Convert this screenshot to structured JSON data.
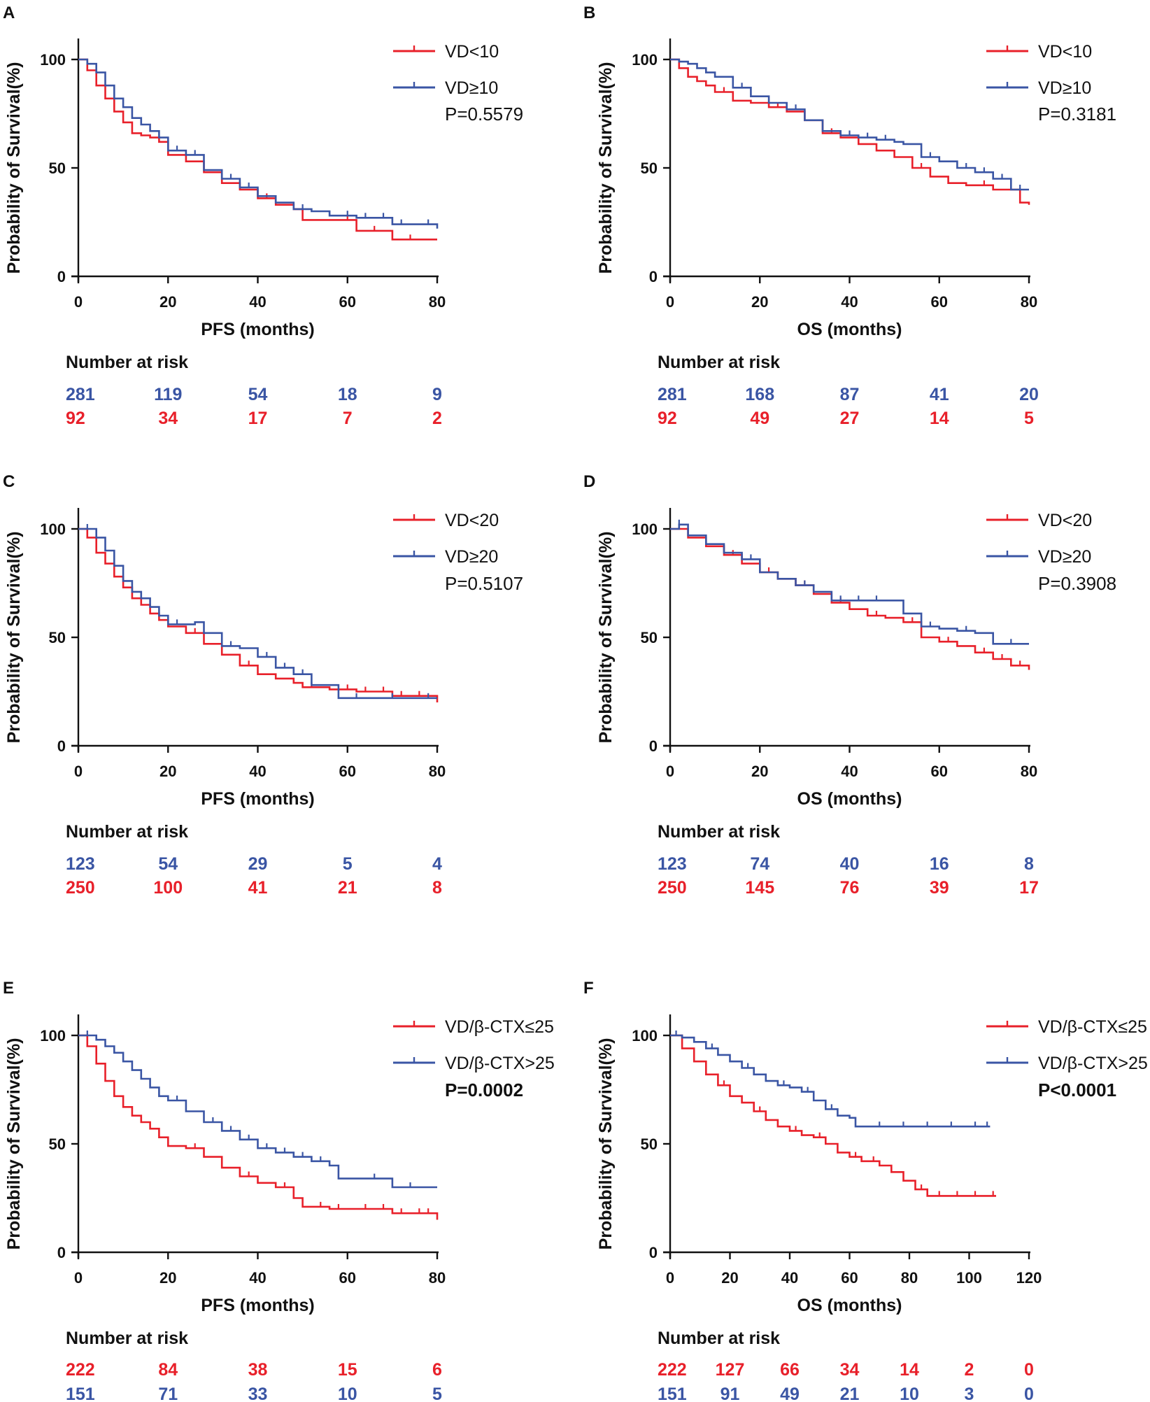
{
  "colors": {
    "red": "#e8202a",
    "blue": "#3a55a4",
    "axis": "#111111"
  },
  "chart_data": [
    {
      "panel": "A",
      "type": "line",
      "xlabel": "PFS (months)",
      "ylabel": "Probability of Survival(%)",
      "xlim": [
        0,
        80
      ],
      "ylim": [
        0,
        100
      ],
      "xticks": [
        "0",
        "20",
        "40",
        "60",
        "80"
      ],
      "yticks": [
        "0",
        "50",
        "100"
      ],
      "p_value": "P=0.5579",
      "p_bold": false,
      "risk_title": "Number at risk",
      "series": [
        {
          "name": "VD<10",
          "color": "red",
          "x": [
            0,
            2,
            4,
            6,
            8,
            10,
            12,
            14,
            16,
            18,
            20,
            24,
            28,
            32,
            36,
            40,
            44,
            48,
            50,
            56,
            62,
            70,
            80
          ],
          "y": [
            100,
            95,
            88,
            82,
            76,
            71,
            66,
            65,
            64,
            62,
            56,
            53,
            48,
            43,
            40,
            36,
            33,
            31,
            26,
            26,
            21,
            17,
            17
          ],
          "censored_x": [
            36,
            42,
            60,
            66,
            74
          ],
          "risk": [
            "92",
            "34",
            "17",
            "7",
            "2"
          ]
        },
        {
          "name": "VD≥10",
          "color": "blue",
          "x": [
            0,
            2,
            4,
            6,
            8,
            10,
            12,
            14,
            16,
            18,
            20,
            24,
            28,
            32,
            36,
            40,
            44,
            48,
            52,
            56,
            62,
            70,
            80
          ],
          "y": [
            100,
            98,
            94,
            88,
            82,
            78,
            73,
            70,
            67,
            64,
            58,
            56,
            49,
            45,
            41,
            37,
            34,
            31,
            30,
            28,
            27,
            24,
            22
          ],
          "censored_x": [
            22,
            26,
            34,
            38,
            44,
            50,
            56,
            60,
            64,
            68,
            72,
            78
          ],
          "risk": [
            "281",
            "119",
            "54",
            "18",
            "9"
          ]
        }
      ]
    },
    {
      "panel": "B",
      "type": "line",
      "xlabel": "OS (months)",
      "ylabel": "Probability of Survival(%)",
      "xlim": [
        0,
        80
      ],
      "ylim": [
        0,
        100
      ],
      "xticks": [
        "0",
        "20",
        "40",
        "60",
        "80"
      ],
      "yticks": [
        "0",
        "50",
        "100"
      ],
      "p_value": "P=0.3181",
      "p_bold": false,
      "risk_title": "Number at risk",
      "series": [
        {
          "name": "VD<10",
          "color": "red",
          "x": [
            0,
            2,
            4,
            6,
            8,
            10,
            14,
            18,
            22,
            26,
            30,
            34,
            38,
            42,
            46,
            50,
            54,
            58,
            62,
            66,
            72,
            78,
            80
          ],
          "y": [
            100,
            96,
            92,
            90,
            88,
            85,
            81,
            80,
            78,
            76,
            72,
            66,
            64,
            61,
            58,
            55,
            50,
            46,
            43,
            42,
            40,
            34,
            33
          ],
          "censored_x": [
            12,
            24,
            36,
            56,
            70,
            76
          ],
          "risk": [
            "92",
            "49",
            "27",
            "14",
            "5"
          ]
        },
        {
          "name": "VD≥10",
          "color": "blue",
          "x": [
            0,
            2,
            4,
            6,
            8,
            10,
            14,
            18,
            22,
            26,
            30,
            34,
            38,
            42,
            46,
            50,
            52,
            56,
            60,
            64,
            68,
            72,
            76,
            80
          ],
          "y": [
            100,
            99,
            98,
            96,
            94,
            92,
            87,
            83,
            80,
            77,
            72,
            67,
            65,
            64,
            63,
            62,
            61,
            55,
            53,
            50,
            48,
            45,
            40,
            40
          ],
          "censored_x": [
            16,
            28,
            40,
            44,
            48,
            58,
            66,
            70,
            74,
            78
          ],
          "risk": [
            "281",
            "168",
            "87",
            "41",
            "20"
          ]
        }
      ]
    },
    {
      "panel": "C",
      "type": "line",
      "xlabel": "PFS (months)",
      "ylabel": "Probability of Survival(%)",
      "xlim": [
        0,
        80
      ],
      "ylim": [
        0,
        100
      ],
      "xticks": [
        "0",
        "20",
        "40",
        "60",
        "80"
      ],
      "yticks": [
        "0",
        "50",
        "100"
      ],
      "p_value": "P=0.5107",
      "p_bold": false,
      "risk_title": "Number at risk",
      "series": [
        {
          "name": "VD<20",
          "color": "red",
          "x": [
            0,
            2,
            4,
            6,
            8,
            10,
            12,
            14,
            16,
            18,
            20,
            24,
            28,
            32,
            36,
            40,
            44,
            48,
            50,
            56,
            62,
            70,
            80
          ],
          "y": [
            100,
            96,
            89,
            84,
            78,
            73,
            68,
            65,
            61,
            58,
            55,
            52,
            47,
            42,
            37,
            33,
            31,
            29,
            27,
            26,
            25,
            23,
            20
          ],
          "censored_x": [
            26,
            38,
            52,
            60,
            64,
            68,
            72,
            76
          ],
          "risk": [
            "250",
            "100",
            "41",
            "21",
            "8"
          ]
        },
        {
          "name": "VD≥20",
          "color": "blue",
          "x": [
            0,
            2,
            4,
            6,
            8,
            10,
            12,
            14,
            16,
            18,
            20,
            26,
            28,
            32,
            36,
            40,
            44,
            48,
            52,
            58,
            80
          ],
          "y": [
            100,
            100,
            96,
            90,
            83,
            76,
            71,
            68,
            64,
            60,
            56,
            57,
            52,
            46,
            45,
            41,
            36,
            33,
            28,
            22,
            22
          ],
          "censored_x": [
            2,
            22,
            34,
            42,
            46,
            50,
            62,
            70,
            78
          ],
          "risk": [
            "123",
            "54",
            "29",
            "5",
            "4"
          ]
        }
      ]
    },
    {
      "panel": "D",
      "type": "line",
      "xlabel": "OS (months)",
      "ylabel": "Probability of Survival(%)",
      "xlim": [
        0,
        80
      ],
      "ylim": [
        0,
        100
      ],
      "xticks": [
        "0",
        "20",
        "40",
        "60",
        "80"
      ],
      "yticks": [
        "0",
        "50",
        "100"
      ],
      "p_value": "P=0.3908",
      "p_bold": false,
      "risk_title": "Number at risk",
      "series": [
        {
          "name": "VD<20",
          "color": "red",
          "x": [
            0,
            4,
            8,
            12,
            16,
            20,
            24,
            28,
            32,
            36,
            40,
            44,
            48,
            52,
            56,
            60,
            64,
            68,
            72,
            76,
            80
          ],
          "y": [
            100,
            96,
            92,
            88,
            84,
            80,
            77,
            74,
            70,
            66,
            63,
            60,
            59,
            57,
            50,
            48,
            46,
            43,
            40,
            37,
            35
          ],
          "censored_x": [
            14,
            22,
            30,
            38,
            46,
            54,
            62,
            70,
            74,
            78
          ],
          "risk": [
            "250",
            "145",
            "76",
            "39",
            "17"
          ]
        },
        {
          "name": "VD≥20",
          "color": "blue",
          "x": [
            0,
            2,
            4,
            8,
            12,
            16,
            20,
            24,
            28,
            32,
            36,
            40,
            44,
            48,
            52,
            56,
            60,
            64,
            68,
            72,
            80
          ],
          "y": [
            100,
            102,
            97,
            93,
            89,
            86,
            80,
            77,
            74,
            71,
            67,
            67,
            67,
            67,
            61,
            55,
            54,
            53,
            52,
            47,
            47
          ],
          "censored_x": [
            2,
            18,
            30,
            38,
            42,
            46,
            58,
            66,
            76
          ],
          "risk": [
            "123",
            "74",
            "40",
            "16",
            "8"
          ]
        }
      ]
    },
    {
      "panel": "E",
      "type": "line",
      "xlabel": "PFS (months)",
      "ylabel": "Probability of Survival(%)",
      "xlim": [
        0,
        80
      ],
      "ylim": [
        0,
        100
      ],
      "xticks": [
        "0",
        "20",
        "40",
        "60",
        "80"
      ],
      "yticks": [
        "0",
        "50",
        "100"
      ],
      "p_value": "P=0.0002",
      "p_bold": true,
      "risk_title": "Number at risk",
      "series": [
        {
          "name": "VD/β-CTX≤25",
          "color": "red",
          "x": [
            0,
            2,
            4,
            6,
            8,
            10,
            12,
            14,
            16,
            18,
            20,
            24,
            28,
            32,
            36,
            40,
            44,
            48,
            50,
            56,
            62,
            70,
            80
          ],
          "y": [
            100,
            95,
            87,
            79,
            72,
            67,
            63,
            60,
            57,
            53,
            49,
            48,
            44,
            39,
            35,
            32,
            30,
            25,
            21,
            20,
            20,
            18,
            15
          ],
          "censored_x": [
            26,
            38,
            46,
            54,
            58,
            64,
            68,
            72,
            76,
            78
          ],
          "risk": [
            "222",
            "84",
            "38",
            "15",
            "6"
          ]
        },
        {
          "name": "VD/β-CTX>25",
          "color": "blue",
          "x": [
            0,
            2,
            4,
            6,
            8,
            10,
            12,
            14,
            16,
            18,
            20,
            24,
            28,
            32,
            36,
            40,
            44,
            48,
            52,
            56,
            58,
            62,
            70,
            80
          ],
          "y": [
            100,
            100,
            98,
            95,
            92,
            88,
            84,
            80,
            76,
            72,
            70,
            65,
            60,
            56,
            52,
            48,
            46,
            44,
            42,
            40,
            34,
            34,
            30,
            30
          ],
          "censored_x": [
            2,
            22,
            30,
            34,
            38,
            42,
            46,
            50,
            54,
            66,
            74
          ],
          "risk": [
            "151",
            "71",
            "33",
            "10",
            "5"
          ]
        }
      ]
    },
    {
      "panel": "F",
      "type": "line",
      "xlabel": "OS (months)",
      "ylabel": "Probability of Survival(%)",
      "xlim": [
        0,
        120
      ],
      "ylim": [
        0,
        100
      ],
      "xticks": [
        "0",
        "20",
        "40",
        "60",
        "80",
        "100",
        "120"
      ],
      "yticks": [
        "0",
        "50",
        "100"
      ],
      "p_value": "P<0.0001",
      "p_bold": true,
      "risk_title": "Number at risk",
      "series": [
        {
          "name": "VD/β-CTX≤25",
          "color": "red",
          "x": [
            0,
            4,
            8,
            12,
            16,
            20,
            24,
            28,
            32,
            36,
            40,
            44,
            48,
            52,
            56,
            60,
            64,
            70,
            74,
            78,
            82,
            86,
            109
          ],
          "y": [
            100,
            94,
            88,
            82,
            77,
            72,
            69,
            65,
            61,
            58,
            56,
            54,
            53,
            50,
            46,
            44,
            42,
            40,
            37,
            33,
            29,
            26,
            26
          ],
          "censored_x": [
            18,
            30,
            42,
            50,
            62,
            68,
            84,
            90,
            96,
            102,
            108
          ],
          "risk": [
            "222",
            "127",
            "66",
            "34",
            "14",
            "2",
            "0"
          ]
        },
        {
          "name": "VD/β-CTX>25",
          "color": "blue",
          "x": [
            0,
            4,
            8,
            12,
            16,
            20,
            24,
            28,
            32,
            36,
            40,
            44,
            48,
            52,
            56,
            60,
            62,
            107
          ],
          "y": [
            100,
            99,
            97,
            94,
            91,
            88,
            85,
            82,
            79,
            77,
            76,
            74,
            70,
            66,
            63,
            62,
            58,
            58
          ],
          "censored_x": [
            2,
            14,
            26,
            38,
            46,
            54,
            70,
            78,
            86,
            94,
            102,
            106
          ],
          "risk": [
            "151",
            "91",
            "49",
            "21",
            "10",
            "3",
            "0"
          ]
        }
      ]
    }
  ]
}
